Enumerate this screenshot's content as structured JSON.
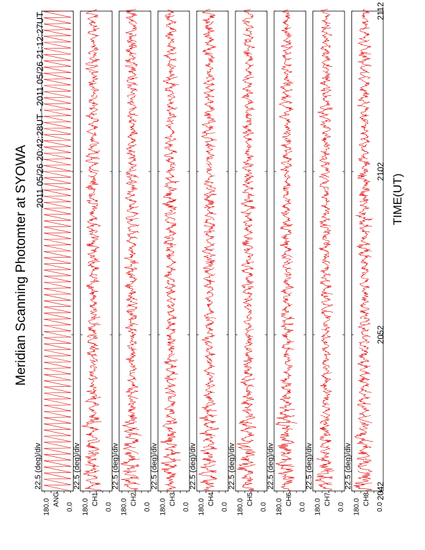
{
  "chart_data": {
    "type": "line",
    "title": "Meridian Scanning Photomter at SYOWA",
    "time_range": "2011 05/26 20:42:28UT - 2011 05/26 21:12:27UT",
    "xlabel": "TIME(UT)",
    "x_ticks": [
      "2042",
      "2052",
      "2102",
      "2112"
    ],
    "scale_label": "22.5 (deg)/div",
    "ylim": [
      0.0,
      180.0
    ],
    "y_tick_labels": [
      "180.0",
      "0.0"
    ],
    "line_color": "#e00000",
    "panels": [
      {
        "label": "ANG"
      },
      {
        "label": "CH1"
      },
      {
        "label": "CH2"
      },
      {
        "label": "CH3"
      },
      {
        "label": "CH4"
      },
      {
        "label": "CH5"
      },
      {
        "label": "CH6"
      },
      {
        "label": "CH7"
      },
      {
        "label": "CH8"
      }
    ]
  }
}
